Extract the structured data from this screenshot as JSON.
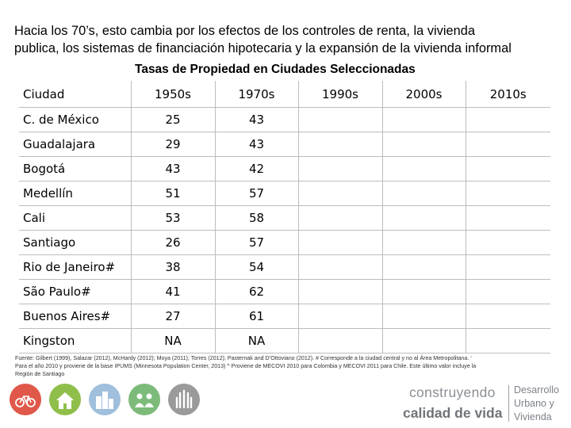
{
  "intro": {
    "line1": "Hacia los 70’s, esto cambia por los efectos de los controles de renta, la vivienda",
    "line2": "publica, los sistemas de financiación hipotecaria y la expansión de la vivienda informal"
  },
  "table_title": "Tasas de Propiedad en Ciudades Seleccionadas",
  "table": {
    "headers": [
      "Ciudad",
      "1950s",
      "1970s",
      "1990s",
      "2000s",
      "2010s"
    ],
    "rows": [
      [
        "C. de México",
        "25",
        "43",
        "",
        "",
        ""
      ],
      [
        "Guadalajara",
        "29",
        "43",
        "",
        "",
        ""
      ],
      [
        "Bogotá",
        "43",
        "42",
        "",
        "",
        ""
      ],
      [
        "Medellín",
        "51",
        "57",
        "",
        "",
        ""
      ],
      [
        "Cali",
        "53",
        "58",
        "",
        "",
        ""
      ],
      [
        "Santiago",
        "26",
        "57",
        "",
        "",
        ""
      ],
      [
        "Rio de Janeiro#",
        "38",
        "54",
        "",
        "",
        ""
      ],
      [
        "São Paulo#",
        "41",
        "62",
        "",
        "",
        ""
      ],
      [
        "Buenos Aires#",
        "27",
        "61",
        "",
        "",
        ""
      ],
      [
        "Kingston",
        "NA",
        "NA",
        "",
        "",
        ""
      ]
    ]
  },
  "source": {
    "line1": "Fuente: Gilbert (1999), Salazar (2012), McHardy (2012); Moya (2011); Torres (2012); Pasternak and D’Ottoviano (2012). # Corresponde a la ciudad central y no al Área Metropolitana. ‘",
    "line2": "Para el año 2010 y proviene de la base IPUMS (Minnesota Population Center, 2013) ^ Proviene de MECOVI 2010 para Colombia y MECOVI 2011 para Chile. Este último valor incluye la",
    "line3": "Región de Santiago"
  },
  "logo_icons": [
    {
      "name": "bicycle-icon",
      "color": "#e0584a"
    },
    {
      "name": "house-icon",
      "color": "#8fbf4a"
    },
    {
      "name": "city-buildings-icon",
      "color": "#9fbfdc"
    },
    {
      "name": "community-icon",
      "color": "#7dbb7a"
    },
    {
      "name": "raised-hands-icon",
      "color": "#9a9a9a"
    }
  ],
  "brand": {
    "line1": "construyendo",
    "line2": "calidad de vida",
    "right1": "Desarrollo",
    "right2": "Urbano y",
    "right3": "Vivienda"
  }
}
